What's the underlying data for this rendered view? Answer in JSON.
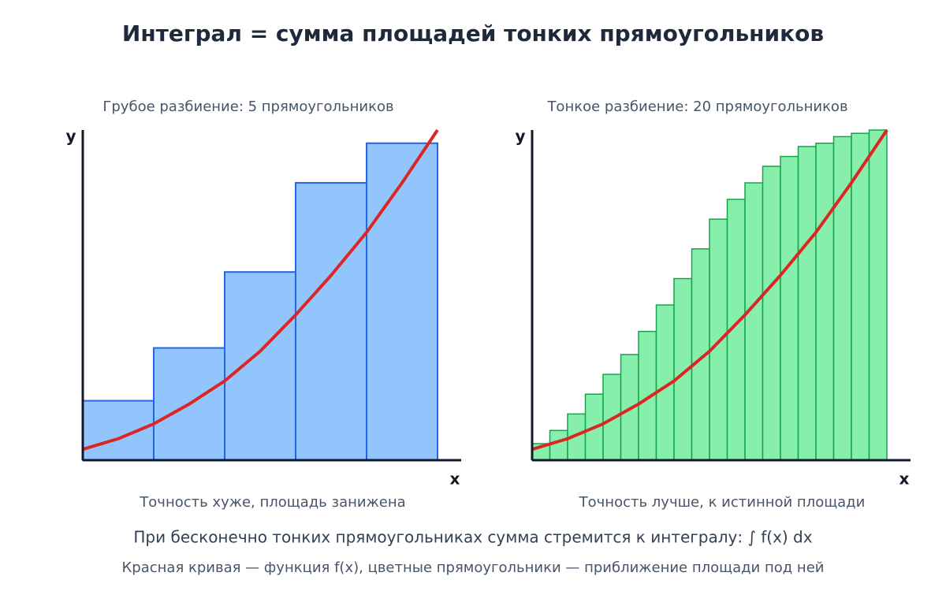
{
  "title": "Интеграл = сумма площадей тонких прямоугольников",
  "chart_data": [
    {
      "type": "bar",
      "title": "Грубое разбиение: 5 прямоугольников",
      "caption": "Точность хуже, площадь занижена",
      "xlabel": "x",
      "ylabel": "y",
      "color": "#93c5fd",
      "edge_color": "#2563eb",
      "values": [
        0.18,
        0.34,
        0.57,
        0.84,
        0.96
      ],
      "xlim": [
        0,
        1
      ],
      "ylim": [
        0,
        1
      ],
      "curve": {
        "color": "#dc2626",
        "x": [
          0,
          0.1,
          0.2,
          0.3,
          0.4,
          0.5,
          0.6,
          0.7,
          0.8,
          0.9,
          1
        ],
        "y": [
          0.033,
          0.065,
          0.11,
          0.17,
          0.24,
          0.33,
          0.44,
          0.56,
          0.69,
          0.84,
          1.0
        ]
      }
    },
    {
      "type": "bar",
      "title": "Тонкое разбиение: 20 прямоугольников",
      "caption": "Точность лучше, к истинной площади",
      "xlabel": "x",
      "ylabel": "y",
      "color": "#86efac",
      "edge_color": "#16a34a",
      "values": [
        0.05,
        0.09,
        0.14,
        0.2,
        0.26,
        0.32,
        0.39,
        0.47,
        0.55,
        0.64,
        0.73,
        0.79,
        0.84,
        0.89,
        0.92,
        0.95,
        0.96,
        0.98,
        0.99,
        1.0
      ],
      "xlim": [
        0,
        1
      ],
      "ylim": [
        0,
        1
      ],
      "curve": {
        "color": "#dc2626",
        "x": [
          0,
          0.1,
          0.2,
          0.3,
          0.4,
          0.5,
          0.6,
          0.7,
          0.8,
          0.9,
          1
        ],
        "y": [
          0.033,
          0.065,
          0.11,
          0.17,
          0.24,
          0.33,
          0.44,
          0.56,
          0.69,
          0.84,
          1.0
        ]
      }
    }
  ],
  "notes": [
    "При бесконечно тонких прямоугольниках сумма стремится к интегралу: ∫ f(x) dx",
    "Красная кривая — функция f(x), цветные прямоугольники — приближение площади под ней"
  ]
}
